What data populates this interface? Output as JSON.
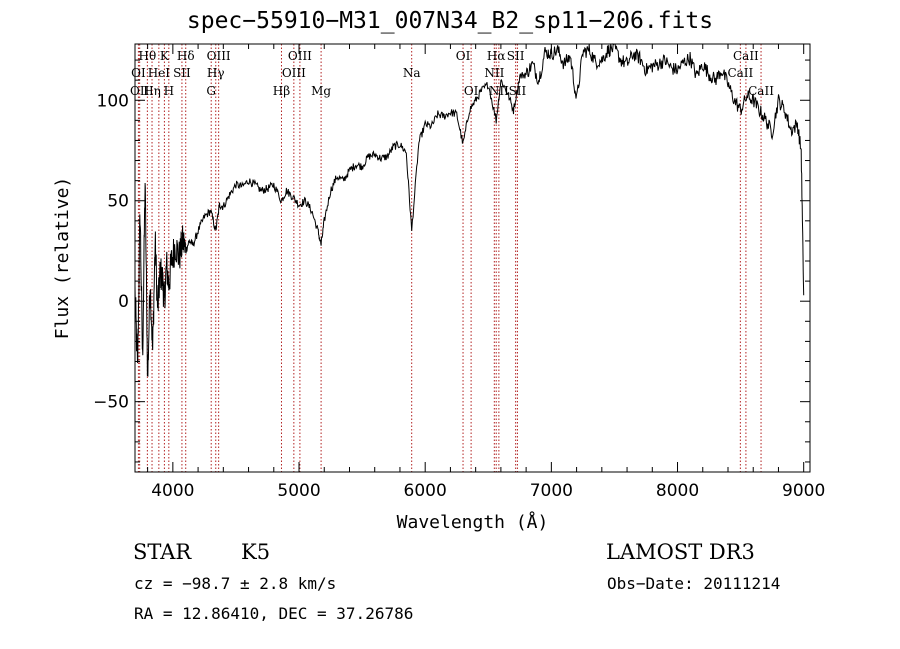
{
  "chart_data": {
    "type": "line",
    "title": "spec−55910−M31_007N34_B2_sp11−206.fits",
    "xlabel": "Wavelength (Å)",
    "ylabel": "Flux (relative)",
    "xlim": [
      3700,
      9050
    ],
    "ylim": [
      -85,
      128
    ],
    "x_ticks": [
      4000,
      5000,
      6000,
      7000,
      8000,
      9000
    ],
    "y_ticks": [
      -50,
      0,
      50,
      100
    ],
    "x_tick_labels": [
      "4000",
      "5000",
      "6000",
      "7000",
      "8000",
      "9000"
    ],
    "y_tick_labels": [
      "−50",
      "0",
      "50",
      "100"
    ],
    "grid": false,
    "legend": "none",
    "line_color": "#000000",
    "marker_color": "#b22222",
    "series": [
      {
        "x": [
          3700,
          3720,
          3740,
          3760,
          3780,
          3800,
          3820,
          3840,
          3860,
          3880,
          3900,
          3920,
          3933,
          3950,
          3968,
          3990,
          4020,
          4050,
          4080,
          4102,
          4130,
          4160,
          4200,
          4250,
          4300,
          4340,
          4370,
          4400,
          4450,
          4500,
          4550,
          4600,
          4650,
          4700,
          4750,
          4800,
          4861,
          4900,
          4950,
          5000,
          5050,
          5100,
          5150,
          5175,
          5200,
          5250,
          5300,
          5350,
          5400,
          5450,
          5500,
          5550,
          5600,
          5650,
          5700,
          5750,
          5800,
          5850,
          5893,
          5950,
          6000,
          6050,
          6100,
          6150,
          6200,
          6250,
          6300,
          6350,
          6400,
          6450,
          6500,
          6563,
          6600,
          6650,
          6700,
          6750,
          6800,
          6850,
          6900,
          6950,
          7000,
          7050,
          7100,
          7150,
          7200,
          7250,
          7300,
          7350,
          7400,
          7450,
          7500,
          7550,
          7600,
          7650,
          7700,
          7750,
          7800,
          7850,
          7900,
          7950,
          8000,
          8050,
          8100,
          8150,
          8200,
          8250,
          8300,
          8350,
          8400,
          8450,
          8500,
          8550,
          8600,
          8650,
          8700,
          8750,
          8800,
          8850,
          8900,
          8950,
          8980,
          9000
        ],
        "y": [
          5,
          -35,
          45,
          -30,
          60,
          -40,
          10,
          -25,
          30,
          -5,
          15,
          10,
          0,
          18,
          8,
          20,
          28,
          22,
          30,
          25,
          30,
          28,
          35,
          42,
          45,
          35,
          48,
          47,
          53,
          58,
          57,
          60,
          58,
          55,
          56,
          58,
          50,
          55,
          52,
          48,
          50,
          45,
          35,
          28,
          40,
          55,
          62,
          60,
          65,
          68,
          67,
          72,
          73,
          71,
          72,
          77,
          78,
          74,
          35,
          79,
          88,
          87,
          93,
          92,
          94,
          93,
          78,
          95,
          100,
          105,
          108,
          90,
          110,
          104,
          95,
          112,
          113,
          118,
          110,
          124,
          123,
          125,
          118,
          122,
          100,
          124,
          125,
          119,
          120,
          125,
          126,
          120,
          118,
          123,
          121,
          115,
          117,
          118,
          120,
          116,
          115,
          119,
          121,
          112,
          118,
          113,
          110,
          115,
          108,
          100,
          95,
          102,
          100,
          95,
          90,
          84,
          100,
          95,
          85,
          88,
          75,
          3
        ]
      }
    ],
    "line_markers": [
      {
        "label": "Hθ",
        "wavelength": 3798,
        "row": 0
      },
      {
        "label": "OI",
        "wavelength": 3727,
        "row": 1
      },
      {
        "label": "OII",
        "wavelength": 3737,
        "row": 2
      },
      {
        "label": "K",
        "wavelength": 3933,
        "row": 0
      },
      {
        "label": "HeI",
        "wavelength": 3889,
        "row": 1
      },
      {
        "label": "Hη",
        "wavelength": 3835,
        "row": 2
      },
      {
        "label": "H",
        "wavelength": 3968,
        "row": 2
      },
      {
        "label": "Hδ",
        "wavelength": 4102,
        "row": 0
      },
      {
        "label": "SII",
        "wavelength": 4072,
        "row": 1
      },
      {
        "label": "OIII",
        "wavelength": 4363,
        "row": 0
      },
      {
        "label": "Hγ",
        "wavelength": 4340,
        "row": 1
      },
      {
        "label": "G",
        "wavelength": 4304,
        "row": 2
      },
      {
        "label": "OIII",
        "wavelength": 5007,
        "row": 0
      },
      {
        "label": "OIII",
        "wavelength": 4959,
        "row": 1
      },
      {
        "label": "Hβ",
        "wavelength": 4861,
        "row": 2
      },
      {
        "label": "Mg",
        "wavelength": 5175,
        "row": 2
      },
      {
        "label": "Na",
        "wavelength": 5893,
        "row": 1
      },
      {
        "label": "OI",
        "wavelength": 6300,
        "row": 0
      },
      {
        "label": "OI",
        "wavelength": 6364,
        "row": 2
      },
      {
        "label": "Hα",
        "wavelength": 6563,
        "row": 0
      },
      {
        "label": "NII",
        "wavelength": 6548,
        "row": 1
      },
      {
        "label": "NII",
        "wavelength": 6584,
        "row": 2
      },
      {
        "label": "SII",
        "wavelength": 6717,
        "row": 0
      },
      {
        "label": "SII",
        "wavelength": 6731,
        "row": 2
      },
      {
        "label": "CaII",
        "wavelength": 8542,
        "row": 0
      },
      {
        "label": "CaII",
        "wavelength": 8498,
        "row": 1
      },
      {
        "label": "CaII",
        "wavelength": 8662,
        "row": 2
      }
    ]
  },
  "info": {
    "object_class": "STAR",
    "subclass": "K5",
    "survey": "LAMOST DR3",
    "cz": "cz = −98.7 ± 2.8 km/s",
    "obs_date": "Obs−Date: 20111214",
    "radec": "RA =  12.86410, DEC =  37.26786"
  }
}
